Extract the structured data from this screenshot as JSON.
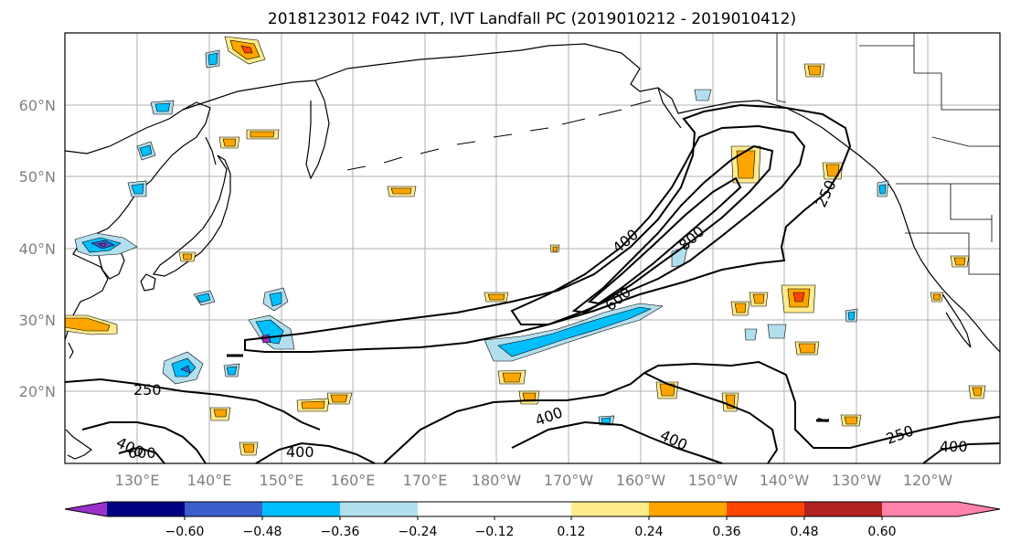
{
  "title": "2018123012 F042 IVT, IVT Landfall PC (2019010212 - 2019010412)",
  "lat_labels": [
    "60°N",
    "50°N",
    "40°N",
    "30°N",
    "20°N"
  ],
  "lon_labels": [
    "130°E",
    "140°E",
    "150°E",
    "160°E",
    "170°E",
    "180°W",
    "170°W",
    "160°W",
    "150°W",
    "140°W",
    "130°W",
    "120°W"
  ],
  "contour_labels": {
    "c250_west": "250",
    "c400_sw": "400",
    "c600_sw": "600",
    "c400_south": "400",
    "c400_mid": "400",
    "c400_jet": "400",
    "c800": "800",
    "c600_jet": "600",
    "c250_ne": "250",
    "c400_se": "400",
    "c250_se": "250",
    "c400_far_se": "400"
  },
  "colorbar": {
    "tick_labels": [
      "−0.60",
      "−0.48",
      "−0.36",
      "−0.24",
      "−0.12",
      "0.12",
      "0.24",
      "0.36",
      "0.48",
      "0.60"
    ],
    "colors": [
      "#9932cc",
      "#000080",
      "#3a5fcd",
      "#00bfff",
      "#b2dfee",
      "#ffffff",
      "#ffec8b",
      "#ffa500",
      "#ff4500",
      "#b22222",
      "#ff82ab"
    ]
  }
}
